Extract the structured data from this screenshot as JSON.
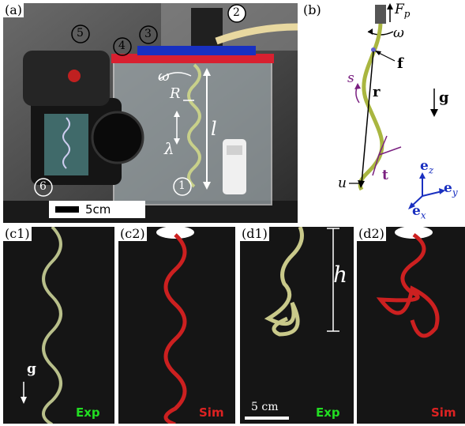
{
  "panel_a": {
    "label": "(a)",
    "numbers": [
      "1",
      "2",
      "3",
      "4",
      "5",
      "6"
    ],
    "omega": "ω",
    "R": "R",
    "lambda": "λ",
    "l": "l",
    "scale": "5cm"
  },
  "panel_b": {
    "label": "(b)",
    "Fp": "F",
    "Fp_sub": "p",
    "omega": "ω",
    "f": "f",
    "s": "s",
    "r": "r",
    "g": "g",
    "u": "u",
    "t": "t",
    "ez": "e",
    "ez_sub": "z",
    "ey": "e",
    "ey_sub": "y",
    "ex": "e",
    "ex_sub": "x"
  },
  "panel_c1": {
    "label": "(c1)",
    "g": "g",
    "badge": "Exp",
    "badge_color": "#22dd22"
  },
  "panel_c2": {
    "label": "(c2)",
    "badge": "Sim",
    "badge_color": "#dd2222"
  },
  "panel_d1": {
    "label": "(d1)",
    "h": "h",
    "scale": "5 cm",
    "badge": "Exp",
    "badge_color": "#22dd22"
  },
  "panel_d2": {
    "label": "(d2)",
    "badge": "Sim",
    "badge_color": "#dd2222"
  }
}
